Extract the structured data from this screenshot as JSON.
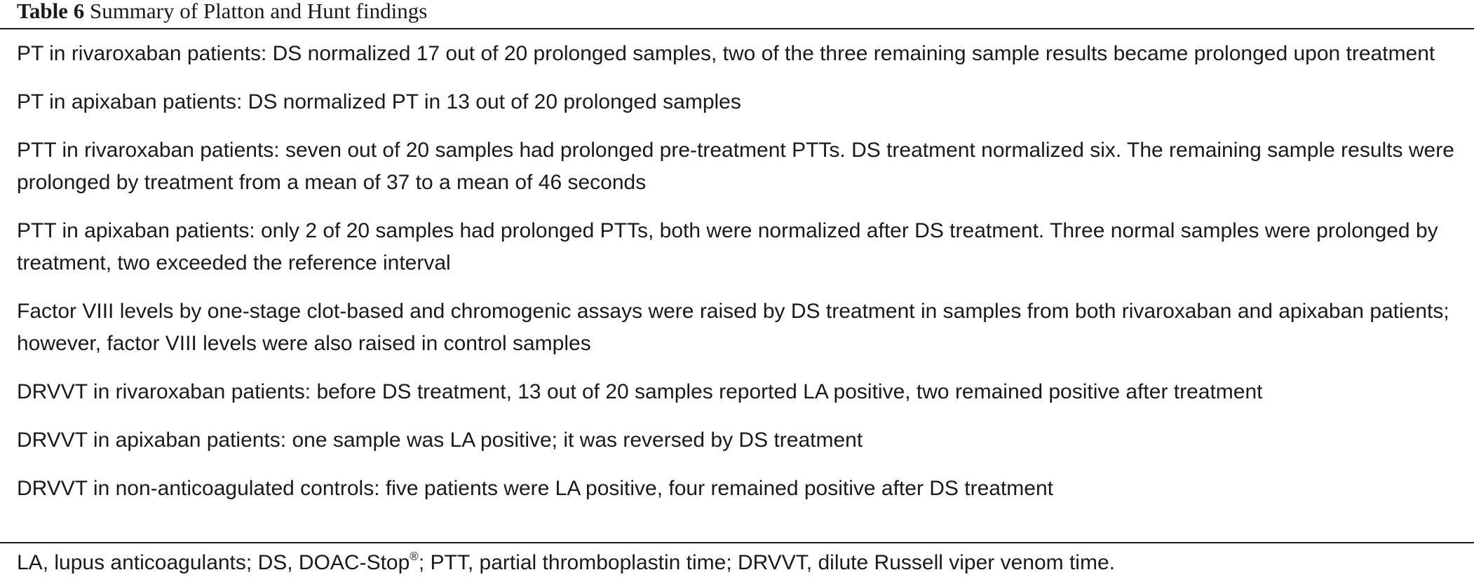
{
  "table": {
    "label": "Table 6",
    "title": "Summary of Platton and Hunt findings",
    "rows": [
      "PT in rivaroxaban patients: DS normalized 17 out of 20 prolonged samples, two of the three remaining sample results became prolonged upon treatment",
      "PT in apixaban patients: DS normalized PT in 13 out of 20 prolonged samples",
      "PTT in rivaroxaban patients: seven out of 20 samples had prolonged pre-treatment PTTs. DS treatment normalized six. The remaining sample results were prolonged by treatment from a mean of 37 to a mean of 46 seconds",
      "PTT in apixaban patients: only 2 of 20 samples had prolonged PTTs, both were normalized after DS treatment. Three normal samples were prolonged by treatment, two exceeded the reference interval",
      "Factor VIII levels by one-stage clot-based and chromogenic assays were raised by DS treatment in samples from both rivaroxaban and apixaban patients; however, factor VIII levels were also raised in control samples",
      "DRVVT in rivaroxaban patients: before DS treatment, 13 out of 20 samples reported LA positive, two remained positive after treatment",
      "DRVVT in apixaban patients: one sample was LA positive; it was reversed by DS treatment",
      "DRVVT in non-anticoagulated controls: five patients were LA positive, four remained positive after DS treatment"
    ],
    "footnote": {
      "before_sup": "LA, lupus anticoagulants; DS, DOAC-Stop",
      "sup": "®",
      "after_sup": "; PTT, partial thromboplastin time; DRVVT, dilute Russell viper venom time."
    }
  }
}
